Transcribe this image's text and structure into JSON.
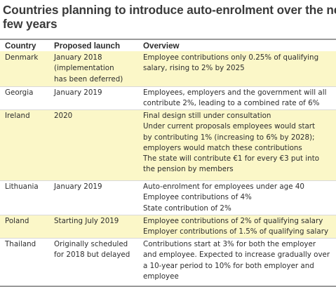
{
  "title_lines": [
    "Countries planning to introduce auto-enrolment over the next",
    "few years"
  ],
  "headers": {
    "country": "Country",
    "launch": "Proposed launch",
    "overview": "Overview"
  },
  "rows": [
    {
      "country": "Denmark",
      "launch": [
        "January 2018",
        "(implementation",
        "has been deferred)"
      ],
      "overview": [
        "Employee contributions only 0.25% of qualifying",
        "salary, rising to 2% by 2025"
      ]
    },
    {
      "country": "Georgia",
      "launch": [
        "January 2019"
      ],
      "overview": [
        "Employees, employers and the government will all",
        "contribute 2%, leading to a combined rate of 6%"
      ]
    },
    {
      "country": "Ireland",
      "launch": [
        "2020"
      ],
      "overview": [
        "Final design still under consultation",
        "Under current proposals employees would start",
        "by contributing 1% (increasing to 6% by 2028);",
        "employers would match these contributions",
        "The state will contribute €1 for every €3 put into",
        "the pension by members"
      ]
    },
    {
      "country": "Lithuania",
      "launch": [
        "January 2019"
      ],
      "overview": [
        "Auto-enrolment for employees under age 40",
        "Employee contributions of 4%",
        "State contribution of 2%"
      ]
    },
    {
      "country": "Poland",
      "launch": [
        "Starting July 2019"
      ],
      "overview": [
        "Employee contributions of 2% of qualifying salary",
        "Employer contributions of 1.5% of qualifying salary"
      ]
    },
    {
      "country": "Thailand",
      "launch": [
        "Originally scheduled",
        "for 2018 but delayed"
      ],
      "overview": [
        "Contributions start at 3% for both the employer",
        "and employee. Expected to increase gradually over",
        "a 10-year period to 10% for both employer and",
        "employee"
      ]
    }
  ]
}
